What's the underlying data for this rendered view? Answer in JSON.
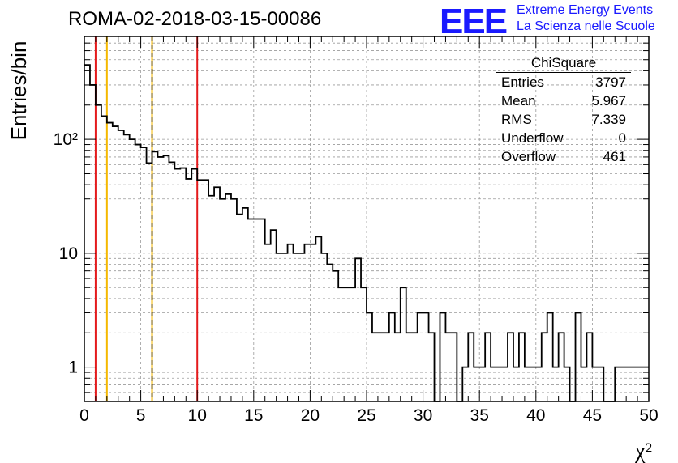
{
  "header": {
    "run_title": "ROMA-02-2018-03-15-00086",
    "logo_text": "EEE",
    "logo_line1": "Extreme Energy Events",
    "logo_line2": "La Scienza nelle Scuole"
  },
  "stats_box": {
    "title": "ChiSquare",
    "rows": [
      {
        "label": "Entries",
        "value": "3797"
      },
      {
        "label": "Mean",
        "value": "5.967"
      },
      {
        "label": "RMS",
        "value": "7.339"
      },
      {
        "label": "Underflow",
        "value": "0"
      },
      {
        "label": "Overflow",
        "value": "461"
      }
    ]
  },
  "colors": {
    "line": "#000000",
    "red_marker": "#e41a1c",
    "orange_marker": "#f5b800",
    "grid": "#9a9a9a",
    "logo": "#1a1aff"
  },
  "chart_data": {
    "type": "histogram",
    "ylabel": "Entries/bin",
    "xlabel": "χ²",
    "x_range": [
      0,
      50
    ],
    "y_range": [
      0.5,
      800
    ],
    "y_scale": "log",
    "grid": true,
    "bin_width": 0.5,
    "x_ticks": [
      "0",
      "5",
      "10",
      "15",
      "20",
      "25",
      "30",
      "35",
      "40",
      "45",
      "50"
    ],
    "y_ticks": [
      {
        "value": 1,
        "label": "1"
      },
      {
        "value": 10,
        "label": "10"
      },
      {
        "value": 100,
        "label": "10²"
      }
    ],
    "values": [
      450,
      300,
      200,
      160,
      140,
      130,
      120,
      110,
      100,
      90,
      85,
      62,
      78,
      70,
      72,
      63,
      55,
      56,
      45,
      55,
      44,
      44,
      32,
      38,
      30,
      33,
      30,
      22,
      25,
      20,
      20,
      20,
      12,
      16,
      10,
      10,
      12,
      10,
      10,
      12,
      12,
      14,
      10,
      8,
      7,
      5,
      5,
      5,
      9,
      5,
      3,
      2,
      2,
      2,
      3,
      2,
      5,
      2,
      2,
      3,
      3,
      2,
      0,
      3,
      2,
      2,
      0,
      1,
      2,
      1,
      1,
      2,
      1,
      1,
      1,
      2,
      1,
      2,
      1,
      1,
      1,
      2,
      3,
      1,
      2,
      1,
      0,
      3,
      1,
      2,
      1,
      1,
      0,
      0,
      1,
      1,
      1,
      1,
      1,
      1
    ],
    "vertical_markers": [
      {
        "x": 1,
        "color": "#e41a1c",
        "style": "solid"
      },
      {
        "x": 2,
        "color": "#f5b800",
        "style": "solid"
      },
      {
        "x": 6,
        "color": "#f5b800",
        "style": "solid"
      },
      {
        "x": 6,
        "color": "#000000",
        "style": "dashed"
      },
      {
        "x": 10,
        "color": "#e41a1c",
        "style": "solid"
      }
    ]
  }
}
